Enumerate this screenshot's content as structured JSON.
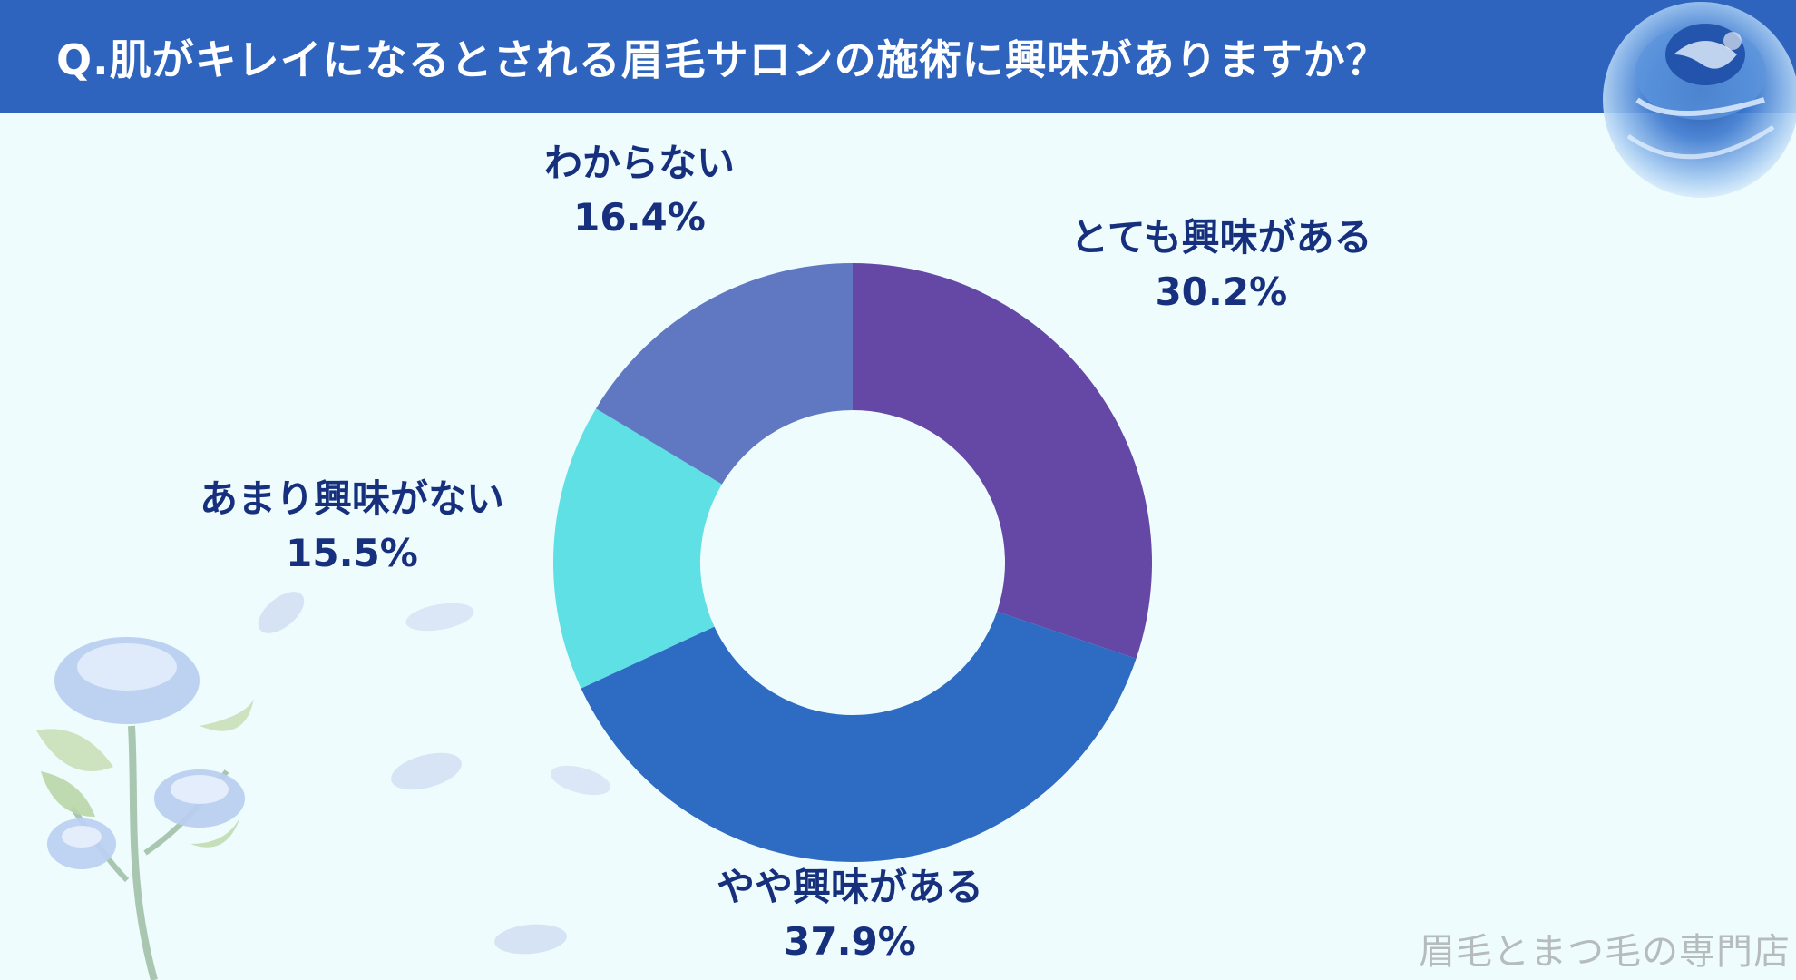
{
  "title": "Q.肌がキレイになるとされる眉毛サロンの施術に興味がありますか？",
  "footer": "眉毛とまつ毛の専門店",
  "colors": {
    "header_bg": "#2e64be",
    "label_text": "#17307e",
    "page_bg": "#eefcfd"
  },
  "decorations": [
    "rose-top-right",
    "rose-bottom-left",
    "petals"
  ],
  "chart_data": {
    "type": "pie",
    "donut": true,
    "unit": "%",
    "categories": [
      "とても興味がある",
      "やや興味がある",
      "あまり興味がない",
      "わからない"
    ],
    "values": [
      30.2,
      37.9,
      15.5,
      16.4
    ],
    "value_labels": [
      "30.2%",
      "37.9%",
      "15.5%",
      "16.4%"
    ],
    "colors": [
      "#6548a5",
      "#2e6bc2",
      "#5fe0e4",
      "#6078c1"
    ]
  }
}
